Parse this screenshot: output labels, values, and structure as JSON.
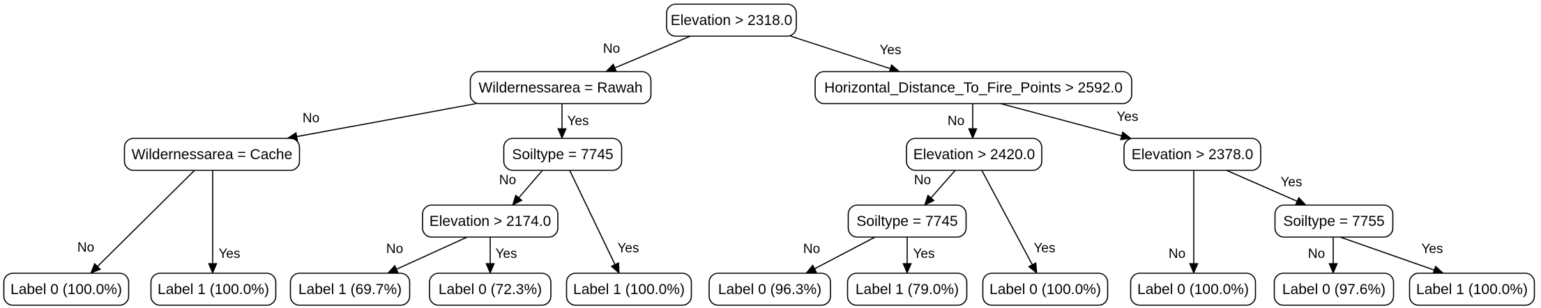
{
  "nodes": [
    {
      "id": "root",
      "label": "Elevation > 2318.0"
    },
    {
      "id": "n_wr",
      "label": "Wildernessarea = Rawah"
    },
    {
      "id": "n_hd",
      "label": "Horizontal_Distance_To_Fire_Points > 2592.0"
    },
    {
      "id": "n_wc",
      "label": "Wildernessarea = Cache"
    },
    {
      "id": "n_s1",
      "label": "Soiltype = 7745"
    },
    {
      "id": "n_e2420",
      "label": "Elevation > 2420.0"
    },
    {
      "id": "n_e2378",
      "label": "Elevation > 2378.0"
    },
    {
      "id": "n_e2174",
      "label": "Elevation > 2174.0"
    },
    {
      "id": "n_s2",
      "label": "Soiltype = 7745"
    },
    {
      "id": "n_s3",
      "label": "Soiltype = 7755"
    },
    {
      "id": "l1",
      "label": "Label 0 (100.0%)"
    },
    {
      "id": "l2",
      "label": "Label 1 (100.0%)"
    },
    {
      "id": "l3",
      "label": "Label 1 (69.7%)"
    },
    {
      "id": "l4",
      "label": "Label 0 (72.3%)"
    },
    {
      "id": "l5",
      "label": "Label 1 (100.0%)"
    },
    {
      "id": "l6",
      "label": "Label 0 (96.3%)"
    },
    {
      "id": "l7",
      "label": "Label 1 (79.0%)"
    },
    {
      "id": "l8",
      "label": "Label 0 (100.0%)"
    },
    {
      "id": "l9",
      "label": "Label 0 (100.0%)"
    },
    {
      "id": "l10",
      "label": "Label 0 (97.6%)"
    },
    {
      "id": "l11",
      "label": "Label 1 (100.0%)"
    }
  ],
  "edges": [
    {
      "from": "root",
      "to": "n_wr",
      "label": "No"
    },
    {
      "from": "root",
      "to": "n_hd",
      "label": "Yes"
    },
    {
      "from": "n_wr",
      "to": "n_wc",
      "label": "No"
    },
    {
      "from": "n_wr",
      "to": "n_s1",
      "label": "Yes"
    },
    {
      "from": "n_wc",
      "to": "l1",
      "label": "No"
    },
    {
      "from": "n_wc",
      "to": "l2",
      "label": "Yes"
    },
    {
      "from": "n_s1",
      "to": "n_e2174",
      "label": "No"
    },
    {
      "from": "n_s1",
      "to": "l5",
      "label": "Yes"
    },
    {
      "from": "n_e2174",
      "to": "l3",
      "label": "No"
    },
    {
      "from": "n_e2174",
      "to": "l4",
      "label": "Yes"
    },
    {
      "from": "n_hd",
      "to": "n_e2420",
      "label": "No"
    },
    {
      "from": "n_hd",
      "to": "n_e2378",
      "label": "Yes"
    },
    {
      "from": "n_e2420",
      "to": "n_s2",
      "label": "No"
    },
    {
      "from": "n_e2420",
      "to": "l8",
      "label": "Yes"
    },
    {
      "from": "n_s2",
      "to": "l6",
      "label": "No"
    },
    {
      "from": "n_s2",
      "to": "l7",
      "label": "Yes"
    },
    {
      "from": "n_e2378",
      "to": "l9",
      "label": "No"
    },
    {
      "from": "n_e2378",
      "to": "n_s3",
      "label": "Yes"
    },
    {
      "from": "n_s3",
      "to": "l10",
      "label": "No"
    },
    {
      "from": "n_s3",
      "to": "l11",
      "label": "Yes"
    }
  ]
}
